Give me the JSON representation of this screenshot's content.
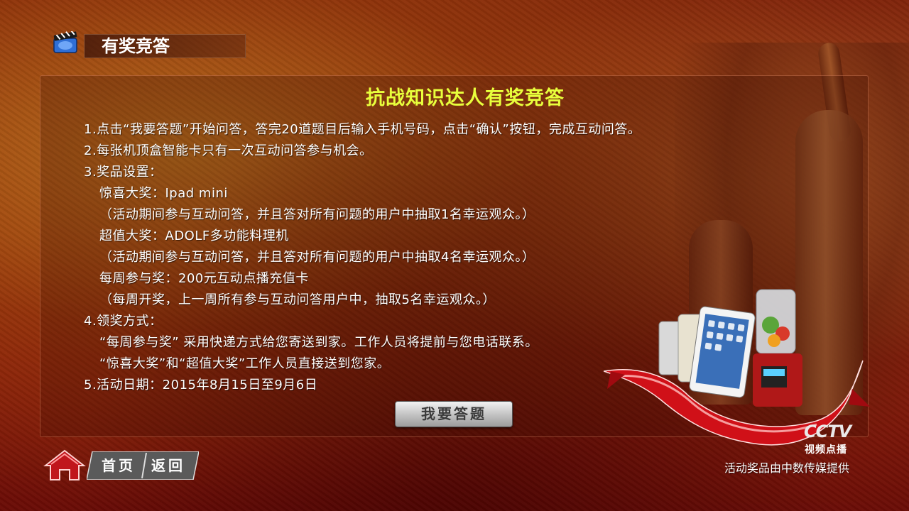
{
  "header": {
    "title": "有奖竞答",
    "icon": "clapperboard-icon"
  },
  "panel": {
    "heading": "抗战知识达人有奖竞答",
    "lines": [
      "1.点击“我要答题”开始问答，答完20道题目后输入手机号码，点击“确认”按钮，完成互动问答。",
      "2.每张机顶盒智能卡只有一次互动问答参与机会。",
      "3.奖品设置：",
      "惊喜大奖：Ipad mini",
      "（活动期间参与互动问答，并且答对所有问题的用户中抽取1名幸运观众。）",
      "超值大奖：ADOLF多功能料理机",
      "（活动期间参与互动问答，并且答对所有问题的用户中抽取4名幸运观众。）",
      "每周参与奖：200元互动点播充值卡",
      "（每周开奖，上一周所有参与互动问答用户中，抽取5名幸运观众。）",
      "4.领奖方式：",
      "“每周参与奖” 采用快递方式给您寄送到家。工作人员将提前与您电话联系。",
      "“惊喜大奖”和“超值大奖”工作人员直接送到您家。",
      "5.活动日期：2015年8月15日至9月6日"
    ],
    "answer_button": "我要答题"
  },
  "nav": {
    "home_label": "首页",
    "back_label": "返回",
    "home_icon": "house-icon"
  },
  "brand": {
    "logo": "CCTV",
    "subtitle": "视频点播",
    "provider": "活动奖品由中数传媒提供"
  },
  "colors": {
    "heading": "#e8ff3c",
    "text": "#ffffff",
    "ribbon": "#d4101a"
  }
}
